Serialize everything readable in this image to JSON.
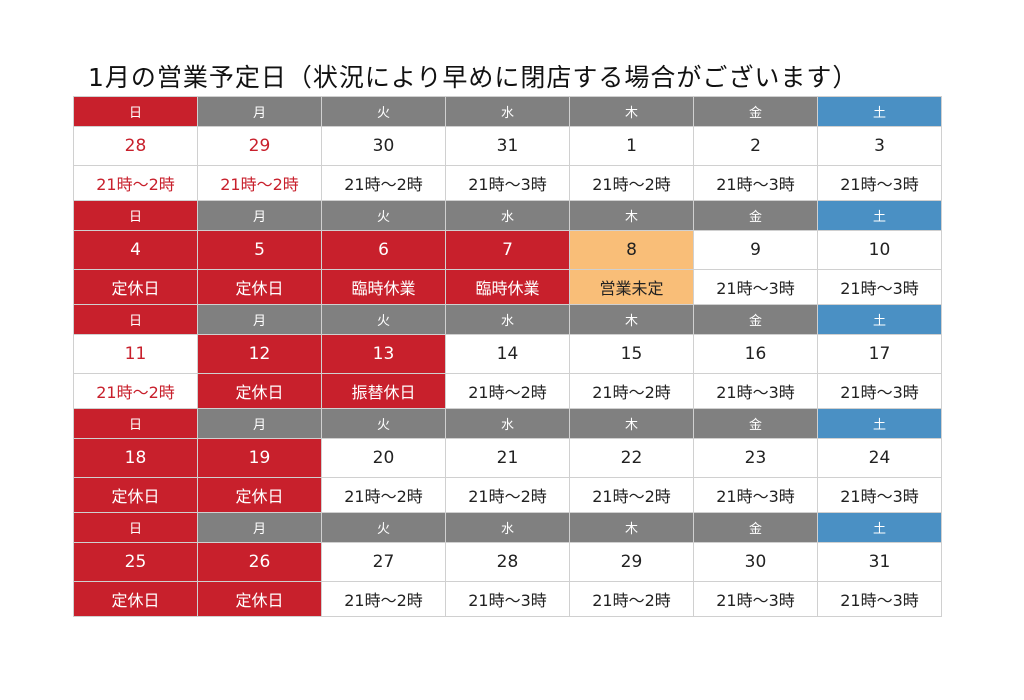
{
  "title": "1月の営業予定日（状況により早めに閉店する場合がございます）",
  "colors": {
    "holiday_red": "#c8202c",
    "saturday_blue": "#4a90c4",
    "weekday_gray": "#808080",
    "undecided_orange": "#f9be78"
  },
  "weekdays": [
    "日",
    "月",
    "火",
    "水",
    "木",
    "金",
    "土"
  ],
  "weeks": [
    {
      "days": [
        {
          "date": "28",
          "status": "21時〜2時",
          "style": "red"
        },
        {
          "date": "29",
          "status": "21時〜2時",
          "style": "red"
        },
        {
          "date": "30",
          "status": "21時〜2時",
          "style": "normal"
        },
        {
          "date": "31",
          "status": "21時〜3時",
          "style": "normal"
        },
        {
          "date": "1",
          "status": "21時〜2時",
          "style": "normal"
        },
        {
          "date": "2",
          "status": "21時〜3時",
          "style": "normal"
        },
        {
          "date": "3",
          "status": "21時〜3時",
          "style": "normal"
        }
      ]
    },
    {
      "days": [
        {
          "date": "4",
          "status": "定休日",
          "style": "closed"
        },
        {
          "date": "5",
          "status": "定休日",
          "style": "closed"
        },
        {
          "date": "6",
          "status": "臨時休業",
          "style": "closed"
        },
        {
          "date": "7",
          "status": "臨時休業",
          "style": "closed"
        },
        {
          "date": "8",
          "status": "営業未定",
          "style": "undecided"
        },
        {
          "date": "9",
          "status": "21時〜3時",
          "style": "normal"
        },
        {
          "date": "10",
          "status": "21時〜3時",
          "style": "normal"
        }
      ]
    },
    {
      "days": [
        {
          "date": "11",
          "status": "21時〜2時",
          "style": "red"
        },
        {
          "date": "12",
          "status": "定休日",
          "style": "closed"
        },
        {
          "date": "13",
          "status": "振替休日",
          "style": "closed"
        },
        {
          "date": "14",
          "status": "21時〜2時",
          "style": "normal"
        },
        {
          "date": "15",
          "status": "21時〜2時",
          "style": "normal"
        },
        {
          "date": "16",
          "status": "21時〜3時",
          "style": "normal"
        },
        {
          "date": "17",
          "status": "21時〜3時",
          "style": "normal"
        }
      ]
    },
    {
      "days": [
        {
          "date": "18",
          "status": "定休日",
          "style": "closed"
        },
        {
          "date": "19",
          "status": "定休日",
          "style": "closed"
        },
        {
          "date": "20",
          "status": "21時〜2時",
          "style": "normal"
        },
        {
          "date": "21",
          "status": "21時〜2時",
          "style": "normal"
        },
        {
          "date": "22",
          "status": "21時〜2時",
          "style": "normal"
        },
        {
          "date": "23",
          "status": "21時〜3時",
          "style": "normal"
        },
        {
          "date": "24",
          "status": "21時〜3時",
          "style": "normal"
        }
      ]
    },
    {
      "days": [
        {
          "date": "25",
          "status": "定休日",
          "style": "closed"
        },
        {
          "date": "26",
          "status": "定休日",
          "style": "closed"
        },
        {
          "date": "27",
          "status": "21時〜2時",
          "style": "normal"
        },
        {
          "date": "28",
          "status": "21時〜3時",
          "style": "normal"
        },
        {
          "date": "29",
          "status": "21時〜2時",
          "style": "normal"
        },
        {
          "date": "30",
          "status": "21時〜3時",
          "style": "normal"
        },
        {
          "date": "31",
          "status": "21時〜3時",
          "style": "normal"
        }
      ]
    }
  ]
}
